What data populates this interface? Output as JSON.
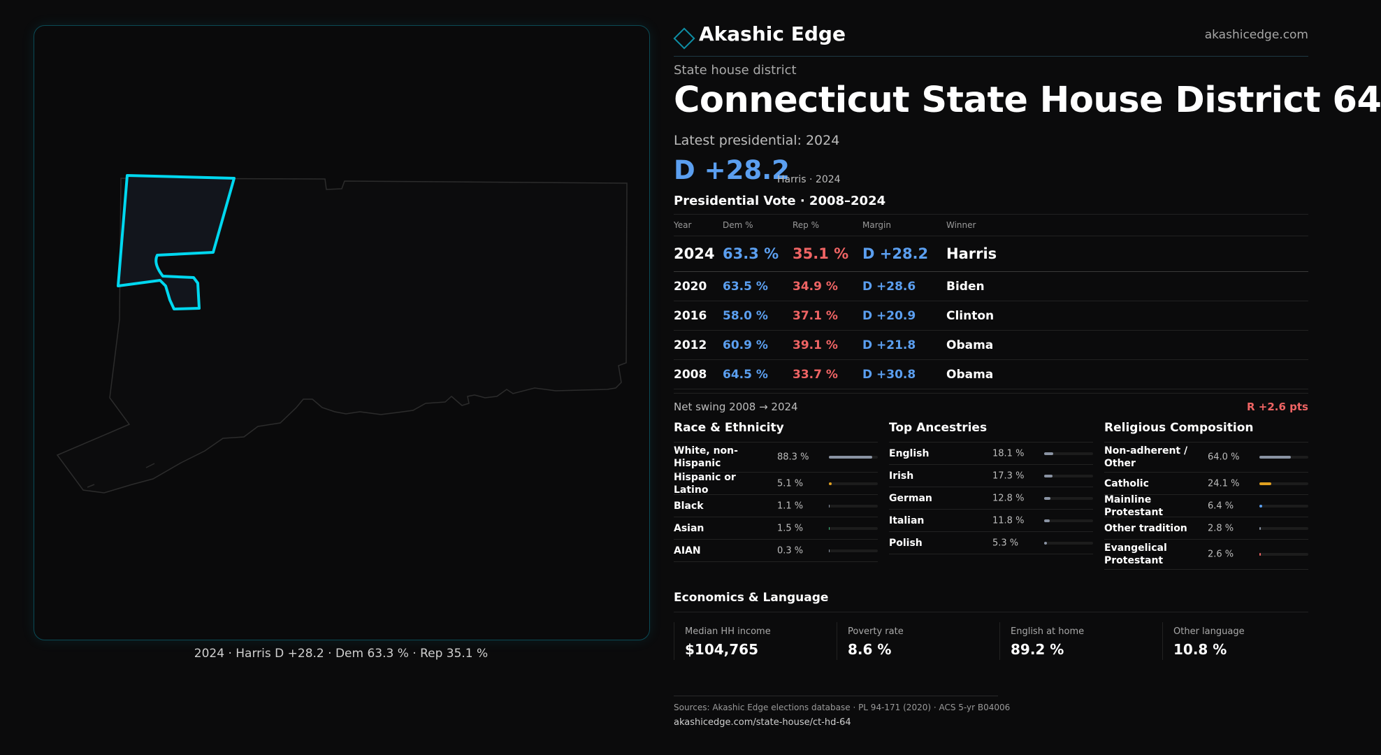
{
  "brand": {
    "name": "Akashic Edge",
    "url": "akashicedge.com"
  },
  "kicker": "State house district",
  "title": "Connecticut State House District 64",
  "latest_label": "Latest presidential: 2024",
  "headline": {
    "margin": "D +28.2",
    "sub": "Harris · 2024"
  },
  "map_caption": "2024 · Harris D +28.2 · Dem 63.3 % · Rep 35.1 %",
  "presidential": {
    "heading": "Presidential Vote · 2008–2024",
    "columns": [
      "Year",
      "Dem %",
      "Rep %",
      "Margin",
      "Winner"
    ],
    "rows": [
      {
        "year": "2024",
        "dem": "63.3 %",
        "rep": "35.1 %",
        "margin": "D +28.2",
        "winner": "Harris"
      },
      {
        "year": "2020",
        "dem": "63.5 %",
        "rep": "34.9 %",
        "margin": "D +28.6",
        "winner": "Biden"
      },
      {
        "year": "2016",
        "dem": "58.0 %",
        "rep": "37.1 %",
        "margin": "D +20.9",
        "winner": "Clinton"
      },
      {
        "year": "2012",
        "dem": "60.9 %",
        "rep": "39.1 %",
        "margin": "D +21.8",
        "winner": "Obama"
      },
      {
        "year": "2008",
        "dem": "64.5 %",
        "rep": "33.7 %",
        "margin": "D +30.8",
        "winner": "Obama"
      }
    ]
  },
  "swing": {
    "label": "Net swing 2008 → 2024",
    "value": "R +2.6 pts"
  },
  "race": {
    "heading": "Race & Ethnicity",
    "items": [
      {
        "label": "White, non-Hispanic",
        "value": "88.3 %",
        "pct": 88.3,
        "color": "#8a93a3"
      },
      {
        "label": "Hispanic or Latino",
        "value": "5.1 %",
        "pct": 5.1,
        "color": "#e0a020"
      },
      {
        "label": "Black",
        "value": "1.1 %",
        "pct": 1.1,
        "color": "#8a93a3"
      },
      {
        "label": "Asian",
        "value": "1.5 %",
        "pct": 1.5,
        "color": "#3cb878"
      },
      {
        "label": "AIAN",
        "value": "0.3 %",
        "pct": 0.3,
        "color": "#8a93a3"
      }
    ]
  },
  "ancestry": {
    "heading": "Top Ancestries",
    "items": [
      {
        "label": "English",
        "value": "18.1 %",
        "pct": 18.1,
        "color": "#8a93a3"
      },
      {
        "label": "Irish",
        "value": "17.3 %",
        "pct": 17.3,
        "color": "#8a93a3"
      },
      {
        "label": "German",
        "value": "12.8 %",
        "pct": 12.8,
        "color": "#8a93a3"
      },
      {
        "label": "Italian",
        "value": "11.8 %",
        "pct": 11.8,
        "color": "#8a93a3"
      },
      {
        "label": "Polish",
        "value": "5.3 %",
        "pct": 5.3,
        "color": "#8a93a3"
      }
    ]
  },
  "religion": {
    "heading": "Religious Composition",
    "items": [
      {
        "label": "Non-adherent / Other",
        "value": "64.0 %",
        "pct": 64.0,
        "color": "#8a93a3"
      },
      {
        "label": "Catholic",
        "value": "24.1 %",
        "pct": 24.1,
        "color": "#e0a020"
      },
      {
        "label": "Mainline Protestant",
        "value": "6.4 %",
        "pct": 6.4,
        "color": "#5b9ff0"
      },
      {
        "label": "Other tradition",
        "value": "2.8 %",
        "pct": 2.8,
        "color": "#8a93a3"
      },
      {
        "label": "Evangelical Protestant",
        "value": "2.6 %",
        "pct": 2.6,
        "color": "#ef6464"
      }
    ]
  },
  "economics": {
    "heading": "Economics & Language",
    "items": [
      {
        "label": "Median HH income",
        "value": "$104,765"
      },
      {
        "label": "Poverty rate",
        "value": "8.6 %"
      },
      {
        "label": "English at home",
        "value": "89.2 %"
      },
      {
        "label": "Other language",
        "value": "10.8 %"
      }
    ]
  },
  "sources": {
    "text": "Sources: Akashic Edge elections database · PL 94-171 (2020) · ACS 5-yr B04006",
    "url": "akashicedge.com/state-house/ct-hd-64"
  },
  "colors": {
    "dem": "#5b9ff0",
    "rep": "#ef6464",
    "accent": "#00d8f0"
  }
}
